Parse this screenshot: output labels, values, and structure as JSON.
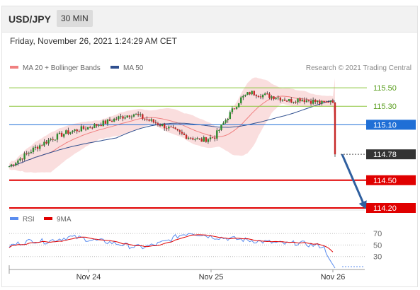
{
  "header": {
    "symbol": "USD/JPY",
    "timeframe": "30 MIN"
  },
  "datetime": "Friday, November 26, 2021 1:24:29 AM CET",
  "legend": {
    "bollinger": {
      "label": "MA 20 + Bollinger Bands",
      "color": "#f08080"
    },
    "ma50": {
      "label": "MA 50",
      "color": "#2f4f8f"
    },
    "rsi": {
      "label": "RSI",
      "color": "#5b8def"
    },
    "ma9": {
      "label": "9MA",
      "color": "#e00000"
    }
  },
  "research": "Research © 2021 Trading Central",
  "chart_data": {
    "type": "candlestick",
    "instrument": "USD/JPY",
    "interval": "30 MIN",
    "ylim": [
      114.2,
      115.6
    ],
    "x_ticks": [
      "Nov 24",
      "Nov 25",
      "Nov 26"
    ],
    "levels": [
      {
        "label": "115.50",
        "value": 115.5,
        "color": "#8dc63f",
        "style": "thin"
      },
      {
        "label": "115.30",
        "value": 115.3,
        "color": "#8dc63f",
        "style": "thin"
      },
      {
        "label": "115.10",
        "value": 115.1,
        "color": "#1f6fd6",
        "style": "thin"
      },
      {
        "label": "114.78",
        "value": 114.78,
        "color": "#333333",
        "style": "dotted"
      },
      {
        "label": "114.50",
        "value": 114.5,
        "color": "#e00000",
        "style": "thick"
      },
      {
        "label": "114.20",
        "value": 114.2,
        "color": "#e00000",
        "style": "thick"
      }
    ],
    "price_path": [
      114.65,
      114.75,
      114.85,
      114.95,
      115.02,
      115.07,
      115.12,
      115.18,
      115.22,
      115.16,
      115.08,
      114.98,
      114.93,
      114.97,
      115.18,
      115.38,
      115.45,
      115.42,
      115.4,
      115.36,
      115.38,
      115.36,
      115.35,
      115.33,
      115.34,
      115.38,
      115.32,
      115.35,
      114.78
    ],
    "price_path_x_frac": [
      0.0,
      0.04,
      0.08,
      0.13,
      0.18,
      0.24,
      0.29,
      0.34,
      0.38,
      0.42,
      0.48,
      0.54,
      0.59,
      0.63,
      0.67,
      0.71,
      0.74,
      0.78,
      0.82,
      0.86,
      0.89,
      0.92,
      0.94,
      0.96,
      0.975,
      0.985,
      0.995,
      1.0,
      1.0
    ],
    "forecast_arrow": {
      "from": 114.78,
      "to": 114.2
    },
    "rsi": {
      "ylim": [
        0,
        100
      ],
      "levels": [
        70,
        50,
        30
      ],
      "values": [
        48,
        54,
        58,
        56,
        60,
        64,
        62,
        58,
        56,
        52,
        48,
        46,
        50,
        56,
        66,
        72,
        68,
        64,
        62,
        60,
        58,
        56,
        54,
        52,
        54,
        50,
        48,
        12
      ]
    }
  }
}
